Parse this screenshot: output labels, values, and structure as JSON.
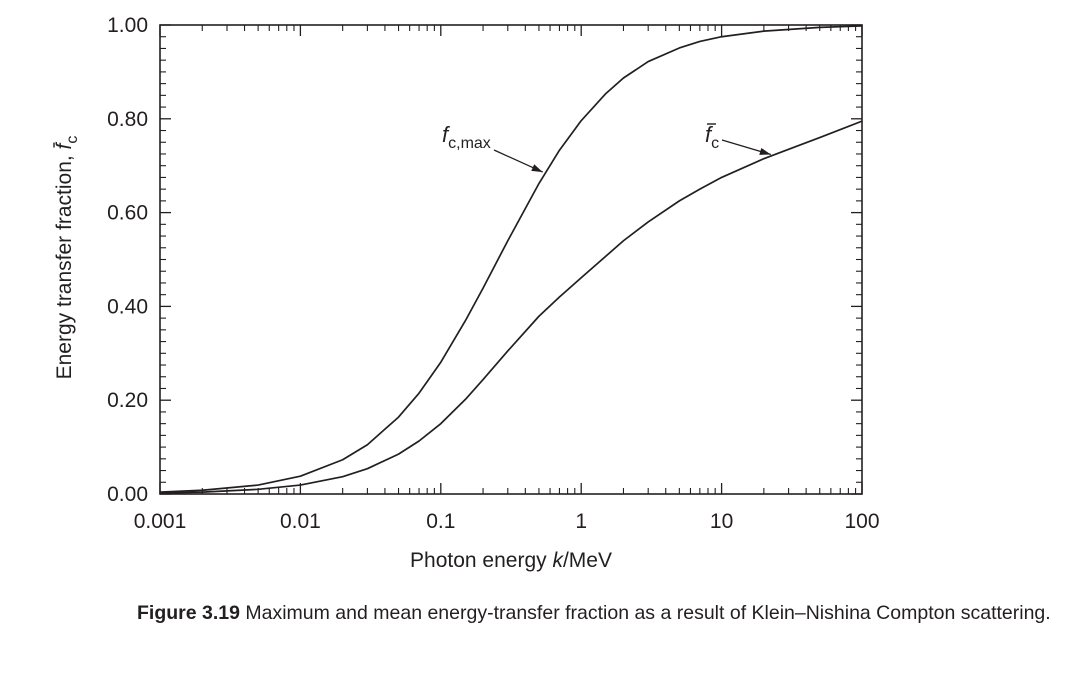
{
  "chart_data": {
    "type": "line",
    "x_scale": "log",
    "xlim": [
      0.001,
      100
    ],
    "ylim": [
      0,
      1
    ],
    "grid": false,
    "xlabel_parts": [
      "Photon energy ",
      "k",
      "/MeV"
    ],
    "ylabel_parts": [
      "Energy transfer fraction, ",
      "f",
      "c"
    ],
    "x_ticks": [
      0.001,
      0.01,
      0.1,
      1,
      10,
      100
    ],
    "x_tick_labels": [
      "0.001",
      "0.01",
      "0.1",
      "1",
      "10",
      "100"
    ],
    "y_ticks": [
      0,
      0.2,
      0.4,
      0.6,
      0.8,
      1.0
    ],
    "y_tick_labels": [
      "0.00",
      "0.20",
      "0.40",
      "0.60",
      "0.80",
      "1.00"
    ],
    "series": [
      {
        "id": "fc_max",
        "label_main": "f",
        "label_sub": "c,max",
        "x": [
          0.001,
          0.002,
          0.005,
          0.01,
          0.02,
          0.03,
          0.05,
          0.07,
          0.1,
          0.15,
          0.2,
          0.3,
          0.5,
          0.7,
          1,
          1.5,
          2,
          3,
          5,
          7,
          10,
          20,
          50,
          100
        ],
        "y": [
          0.004,
          0.008,
          0.019,
          0.038,
          0.073,
          0.105,
          0.164,
          0.215,
          0.281,
          0.37,
          0.439,
          0.54,
          0.662,
          0.733,
          0.796,
          0.854,
          0.887,
          0.922,
          0.951,
          0.965,
          0.975,
          0.987,
          0.995,
          0.998
        ]
      },
      {
        "id": "fc_mean",
        "label_main": "f",
        "label_sub": "c",
        "label_bar": true,
        "x": [
          0.001,
          0.002,
          0.005,
          0.01,
          0.02,
          0.03,
          0.05,
          0.07,
          0.1,
          0.15,
          0.2,
          0.3,
          0.5,
          0.7,
          1,
          2,
          3,
          5,
          7,
          10,
          20,
          30,
          50,
          100
        ],
        "y": [
          0.002,
          0.004,
          0.01,
          0.019,
          0.037,
          0.054,
          0.085,
          0.113,
          0.15,
          0.202,
          0.244,
          0.305,
          0.379,
          0.42,
          0.461,
          0.54,
          0.58,
          0.625,
          0.65,
          0.675,
          0.715,
          0.735,
          0.76,
          0.795
        ]
      }
    ]
  },
  "caption": {
    "label": "Figure 3.19",
    "text": "Maximum and mean energy-transfer fraction as a result of Klein–Nishina Compton scattering."
  }
}
